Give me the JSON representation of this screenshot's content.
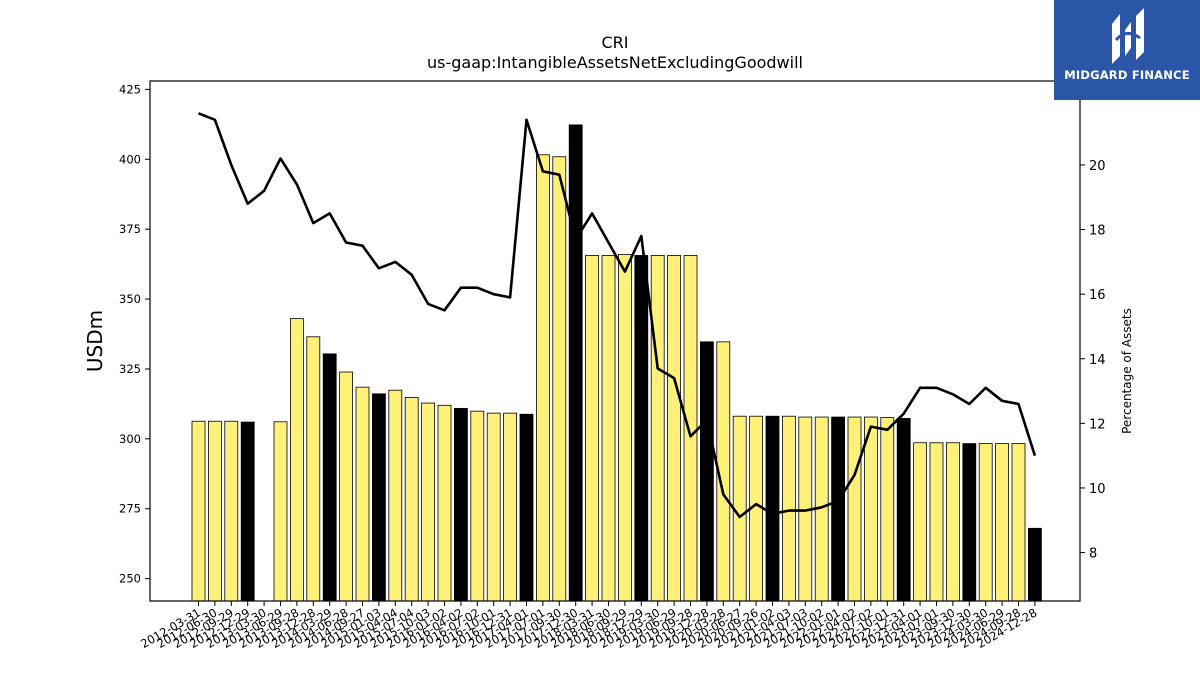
{
  "header": {
    "ticker": "CRI",
    "metric": "us-gaap:IntangibleAssetsNetExcludingGoodwill"
  },
  "logo": {
    "text": "MIDGARD FINANCE",
    "bg_color": "#2b56a8",
    "mark": "midgard-logo"
  },
  "chart_data": {
    "type": "bar",
    "title": "CRI",
    "subtitle": "us-gaap:IntangibleAssetsNetExcludingGoodwill",
    "ylabel": "USDm",
    "y2label": "Percentage of Assets",
    "ylim": [
      242,
      428
    ],
    "y2lim": [
      6.5,
      22.6
    ],
    "yticks": [
      250,
      275,
      300,
      325,
      350,
      375,
      400,
      425
    ],
    "y2ticks": [
      8,
      10,
      12,
      14,
      16,
      18,
      20
    ],
    "colors": {
      "bar_yellow": "#fff07a",
      "bar_black": "#000000",
      "line": "#000000"
    },
    "categories": [
      "2012-03-31",
      "2012-06-30",
      "2012-09-29",
      "2012-12-29",
      "2013-03-30",
      "2013-06-29",
      "2013-09-28",
      "2013-12-28",
      "2014-03-29",
      "2014-06-28",
      "2014-09-27",
      "2015-01-03",
      "2015-04-04",
      "2015-07-04",
      "2015-10-03",
      "2016-01-02",
      "2016-04-02",
      "2016-07-02",
      "2016-10-01",
      "2016-12-31",
      "2017-04-01",
      "2017-07-01",
      "2017-09-30",
      "2017-12-30",
      "2018-03-31",
      "2018-06-30",
      "2018-09-29",
      "2018-12-29",
      "2019-03-30",
      "2019-06-29",
      "2019-09-28",
      "2019-12-28",
      "2020-03-28",
      "2020-06-27",
      "2020-09-26",
      "2021-01-02",
      "2021-04-03",
      "2021-07-03",
      "2021-10-02",
      "2022-01-01",
      "2022-04-02",
      "2022-07-02",
      "2022-10-01",
      "2022-12-31",
      "2023-04-01",
      "2023-07-01",
      "2023-09-30",
      "2023-12-30",
      "2024-03-30",
      "2024-06-29",
      "2024-09-28",
      "2024-12-28"
    ],
    "series": [
      {
        "values": [
          306.3,
          306.3,
          306.3,
          306.0,
          null,
          306.1,
          343.0,
          336.5,
          330.4,
          323.9,
          318.5,
          316.1,
          317.4,
          314.8,
          312.8,
          312.0,
          310.9,
          309.9,
          309.2,
          309.2,
          308.8,
          401.6,
          400.9,
          412.3,
          365.6,
          365.6,
          365.9,
          365.6,
          365.6,
          365.6,
          365.6,
          334.7,
          334.7,
          308.1,
          308.1,
          308.1,
          308.1,
          307.8,
          307.8,
          307.8,
          307.8,
          307.8,
          307.6,
          307.3,
          298.6,
          298.6,
          298.6,
          298.3,
          298.3,
          298.3,
          298.3,
          268.0
        ]
      },
      {
        "type": "line",
        "axis": "right",
        "values": [
          21.6,
          21.4,
          20.0,
          18.8,
          19.2,
          20.2,
          19.4,
          18.2,
          18.5,
          17.6,
          17.5,
          16.8,
          17.0,
          16.6,
          15.7,
          15.5,
          16.2,
          16.2,
          16.0,
          15.9,
          21.4,
          19.8,
          19.7,
          17.7,
          18.5,
          17.6,
          16.7,
          17.8,
          13.7,
          13.4,
          11.6,
          12.1,
          9.8,
          9.1,
          9.5,
          9.2,
          9.3,
          9.3,
          9.4,
          9.6,
          10.4,
          11.9,
          11.8,
          12.3,
          13.1,
          13.1,
          12.9,
          12.6,
          13.1,
          12.7,
          12.6,
          11.0
        ]
      }
    ],
    "black_bar_indices": [
      3,
      8,
      11,
      16,
      20,
      23,
      27,
      31,
      35,
      39,
      43,
      47,
      51
    ]
  }
}
